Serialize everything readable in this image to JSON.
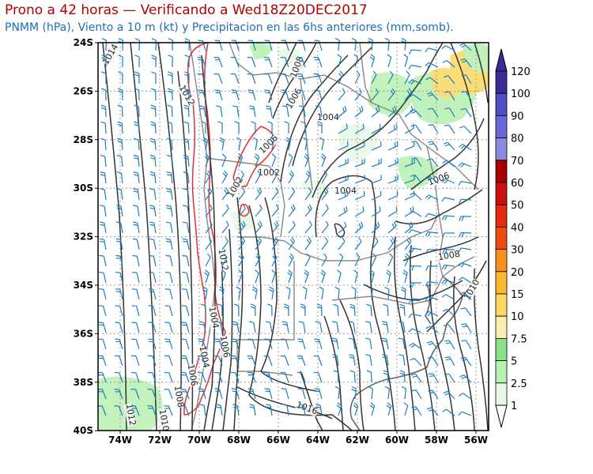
{
  "header": {
    "title": "Prono a 42 horas — Verificando a Wed18Z20DEC2017",
    "subtitle": "PNMM (hPa), Viento a 10 m (kt) y Precipitacion en las 6hs anteriores (mm,somb)."
  },
  "map": {
    "lat_labels": [
      "24S",
      "26S",
      "28S",
      "30S",
      "32S",
      "34S",
      "36S",
      "38S",
      "40S"
    ],
    "lon_labels": [
      "74W",
      "72W",
      "70W",
      "68W",
      "66W",
      "64W",
      "62W",
      "60W",
      "58W",
      "56W"
    ],
    "pressure_labels": [
      "1014",
      "1012",
      "1008",
      "1006",
      "1004",
      "1006",
      "1002",
      "1004",
      "1006",
      "1008",
      "1010",
      "1012",
      "1004",
      "1006",
      "1004",
      "1006",
      "1008",
      "1010",
      "1012",
      "1016",
      "1002"
    ],
    "colors": {
      "isobar": "#333333",
      "terrain_contour": "#e03030",
      "wind_barb": "#1a7fc0",
      "borders": "#888888",
      "grid": "#999999"
    }
  },
  "colorbar": {
    "labels": [
      "120",
      "100",
      "90",
      "80",
      "70",
      "60",
      "50",
      "40",
      "30",
      "20",
      "15",
      "10",
      "7.5",
      "5",
      "2.5",
      "1"
    ],
    "colors": [
      "#3b2b95",
      "#4e4fc4",
      "#6a68d8",
      "#8a8ae0",
      "#a80000",
      "#cc1010",
      "#e42a10",
      "#f04a10",
      "#f89020",
      "#fbb830",
      "#fbd860",
      "#fcecb0",
      "#88e088",
      "#b8f0b0",
      "#e8f8e8"
    ]
  }
}
